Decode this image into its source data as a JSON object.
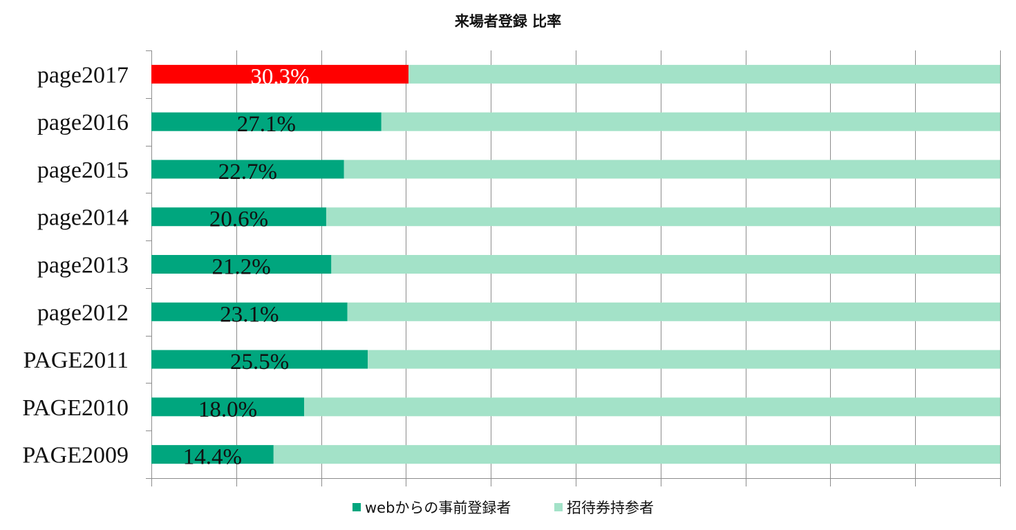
{
  "chart_data": {
    "type": "bar",
    "orientation": "horizontal",
    "stacked": true,
    "percent_stacked": true,
    "title": "来場者登録 比率",
    "categories": [
      "page2017",
      "page2016",
      "page2015",
      "page2014",
      "page2013",
      "page2012",
      "PAGE2011",
      "PAGE2010",
      "PAGE2009"
    ],
    "series": [
      {
        "name": "webからの事前登録者",
        "values": [
          30.3,
          27.1,
          22.7,
          20.6,
          21.2,
          23.1,
          25.5,
          18.0,
          14.4
        ],
        "data_labels": [
          "30.3%",
          "27.1%",
          "22.7%",
          "20.6%",
          "21.2%",
          "23.1%",
          "25.5%",
          "18.0%",
          "14.4%"
        ],
        "color": "#00A67E",
        "highlight": {
          "category": "page2017",
          "color": "#FF0000",
          "label_color": "#FFFFFF"
        }
      },
      {
        "name": "招待券持参者",
        "values": [
          69.7,
          72.9,
          77.3,
          79.4,
          78.8,
          76.9,
          74.5,
          82.0,
          85.6
        ],
        "color": "#A3E2C8"
      }
    ],
    "xlim": [
      0,
      100
    ],
    "gridlines": true,
    "gridline_count": 10,
    "legend_position": "bottom"
  }
}
